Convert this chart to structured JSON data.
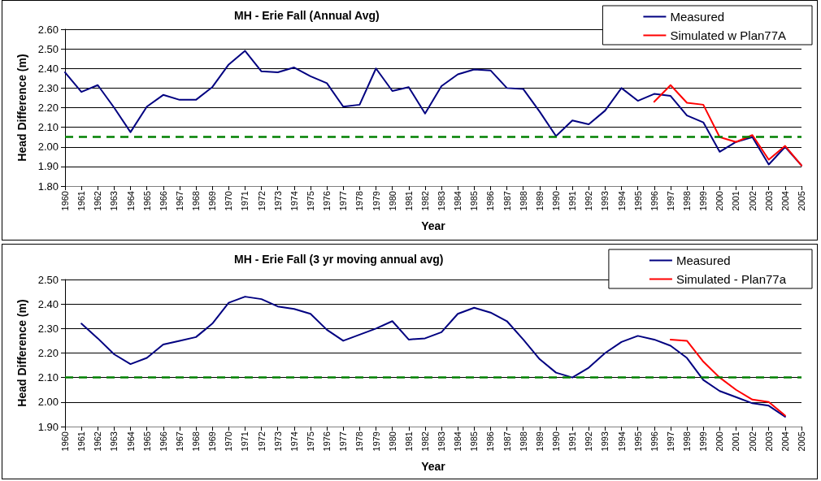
{
  "chart_data": [
    {
      "type": "line",
      "title": "MH - Erie Fall (Annual Avg)",
      "xlabel": "Year",
      "ylabel": "Head Difference (m)",
      "categories": [
        "1960",
        "1961",
        "1962",
        "1963",
        "1964",
        "1965",
        "1966",
        "1967",
        "1968",
        "1969",
        "1970",
        "1971",
        "1972",
        "1973",
        "1974",
        "1975",
        "1976",
        "1977",
        "1978",
        "1979",
        "1980",
        "1981",
        "1982",
        "1983",
        "1984",
        "1985",
        "1986",
        "1987",
        "1988",
        "1989",
        "1990",
        "1991",
        "1992",
        "1993",
        "1994",
        "1995",
        "1996",
        "1997",
        "1998",
        "1999",
        "2000",
        "2001",
        "2002",
        "2003",
        "2004",
        "2005"
      ],
      "series": [
        {
          "name": "Measured",
          "color": "#000080",
          "values": [
            2.38,
            2.28,
            2.315,
            2.2,
            2.075,
            2.205,
            2.265,
            2.24,
            2.24,
            2.305,
            2.42,
            2.49,
            2.385,
            2.38,
            2.405,
            2.36,
            2.325,
            2.205,
            2.215,
            2.4,
            2.285,
            2.305,
            2.17,
            2.31,
            2.37,
            2.395,
            2.39,
            2.3,
            2.295,
            2.18,
            2.055,
            2.135,
            2.115,
            2.185,
            2.3,
            2.235,
            2.27,
            2.26,
            2.16,
            2.125,
            1.975,
            2.025,
            2.05,
            1.91,
            2.0,
            1.905
          ]
        },
        {
          "name": "Simulated w Plan77A",
          "color": "#ff0000",
          "values": [
            null,
            null,
            null,
            null,
            null,
            null,
            null,
            null,
            null,
            null,
            null,
            null,
            null,
            null,
            null,
            null,
            null,
            null,
            null,
            null,
            null,
            null,
            null,
            null,
            null,
            null,
            null,
            null,
            null,
            null,
            null,
            null,
            null,
            null,
            null,
            null,
            2.23,
            2.315,
            2.225,
            2.215,
            2.05,
            2.025,
            2.06,
            1.935,
            2.005,
            1.905
          ]
        }
      ],
      "ylim": [
        1.8,
        2.6
      ],
      "yticks": [
        {
          "value": 1.8,
          "label": "1.80"
        },
        {
          "value": 1.9,
          "label": "1.90"
        },
        {
          "value": 2.0,
          "label": "2.00"
        },
        {
          "value": 2.1,
          "label": "2.10"
        },
        {
          "value": 2.2,
          "label": "2.20"
        },
        {
          "value": 2.3,
          "label": "2.30"
        },
        {
          "value": 2.4,
          "label": "2.40"
        },
        {
          "value": 2.5,
          "label": "2.50"
        },
        {
          "value": 2.6,
          "label": "2.60"
        }
      ],
      "ref_lines": [
        {
          "axis": "y",
          "value": 2.05,
          "color": "#008000",
          "line_style": "dashed"
        }
      ],
      "grid": "y",
      "legend": "top right",
      "marker": "none",
      "line_style": "solid"
    },
    {
      "type": "line",
      "title": "MH - Erie Fall (3 yr moving annual avg)",
      "xlabel": "Year",
      "ylabel": "Head Difference (m)",
      "categories": [
        "1960",
        "1961",
        "1962",
        "1963",
        "1964",
        "1965",
        "1966",
        "1967",
        "1968",
        "1969",
        "1970",
        "1971",
        "1972",
        "1973",
        "1974",
        "1975",
        "1976",
        "1977",
        "1978",
        "1979",
        "1980",
        "1981",
        "1982",
        "1983",
        "1984",
        "1985",
        "1986",
        "1987",
        "1988",
        "1989",
        "1990",
        "1991",
        "1992",
        "1993",
        "1994",
        "1995",
        "1996",
        "1997",
        "1998",
        "1999",
        "2000",
        "2001",
        "2002",
        "2003",
        "2004",
        "2005"
      ],
      "series": [
        {
          "name": "Measured",
          "color": "#000080",
          "values": [
            null,
            2.32,
            2.26,
            2.195,
            2.155,
            2.18,
            2.235,
            2.25,
            2.265,
            2.32,
            2.405,
            2.43,
            2.42,
            2.39,
            2.38,
            2.36,
            2.295,
            2.25,
            2.275,
            2.3,
            2.33,
            2.255,
            2.26,
            2.285,
            2.36,
            2.385,
            2.365,
            2.33,
            2.255,
            2.175,
            2.12,
            2.1,
            2.14,
            2.2,
            2.245,
            2.27,
            2.255,
            2.23,
            2.18,
            2.09,
            2.045,
            2.02,
            1.995,
            1.985,
            1.94,
            null
          ]
        },
        {
          "name": "Simulated - Plan77a",
          "color": "#ff0000",
          "values": [
            null,
            null,
            null,
            null,
            null,
            null,
            null,
            null,
            null,
            null,
            null,
            null,
            null,
            null,
            null,
            null,
            null,
            null,
            null,
            null,
            null,
            null,
            null,
            null,
            null,
            null,
            null,
            null,
            null,
            null,
            null,
            null,
            null,
            null,
            null,
            null,
            null,
            2.255,
            2.25,
            2.165,
            2.1,
            2.05,
            2.01,
            2.0,
            1.945,
            null
          ]
        }
      ],
      "ylim": [
        1.9,
        2.5
      ],
      "yticks": [
        {
          "value": 1.9,
          "label": "1.90"
        },
        {
          "value": 2.0,
          "label": "2.00"
        },
        {
          "value": 2.1,
          "label": "2.10"
        },
        {
          "value": 2.2,
          "label": "2.20"
        },
        {
          "value": 2.3,
          "label": "2.30"
        },
        {
          "value": 2.4,
          "label": "2.40"
        },
        {
          "value": 2.5,
          "label": "2.50"
        }
      ],
      "ref_lines": [
        {
          "axis": "y",
          "value": 2.1,
          "color": "#008000",
          "line_style": "dashed"
        }
      ],
      "grid": "y",
      "legend": "top right",
      "marker": "none",
      "line_style": "solid"
    }
  ]
}
